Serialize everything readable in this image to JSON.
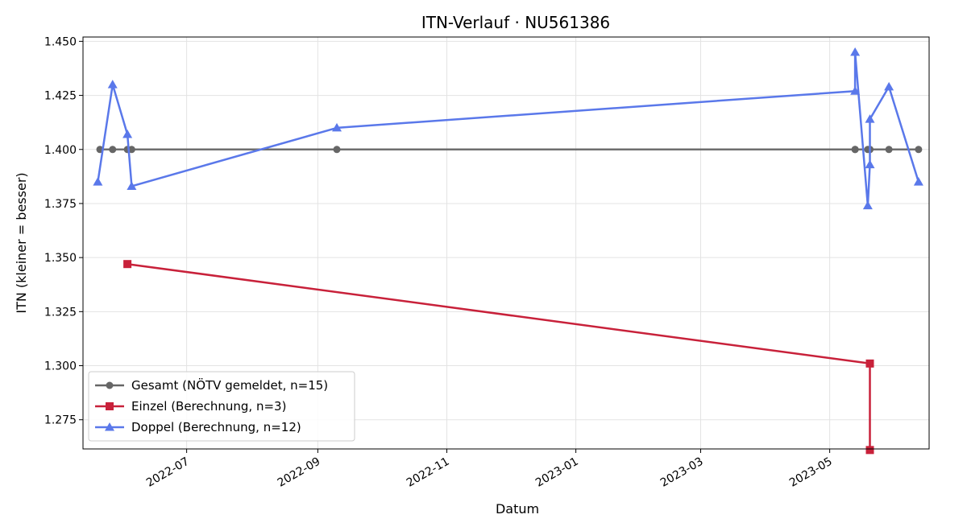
{
  "chart_data": {
    "type": "line",
    "title": "ITN-Verlauf · NU561386",
    "xlabel": "Datum",
    "ylabel": "ITN  (kleiner = besser)",
    "x_type": "date",
    "xlim": [
      "2022-05-13",
      "2023-06-17"
    ],
    "ylim": [
      1.2615,
      1.452
    ],
    "x_ticks": [
      "2022-07-01",
      "2022-09-01",
      "2022-11-01",
      "2023-01-01",
      "2023-03-01",
      "2023-05-01"
    ],
    "x_tick_labels": [
      "2022-07",
      "2022-09",
      "2022-11",
      "2023-01",
      "2023-03",
      "2023-05"
    ],
    "y_ticks": [
      1.275,
      1.3,
      1.325,
      1.35,
      1.375,
      1.4,
      1.425,
      1.45
    ],
    "y_tick_labels": [
      "1.275",
      "1.300",
      "1.325",
      "1.350",
      "1.375",
      "1.400",
      "1.425",
      "1.450"
    ],
    "grid": true,
    "legend_position": "lower-left",
    "series": [
      {
        "name": "Gesamt (NÖTV gemeldet, n=15)",
        "color": "#666666",
        "marker": "circle",
        "points": [
          {
            "x": "2022-05-21",
            "y": 1.4
          },
          {
            "x": "2022-05-27",
            "y": 1.4
          },
          {
            "x": "2022-06-03",
            "y": 1.4
          },
          {
            "x": "2022-06-05",
            "y": 1.4
          },
          {
            "x": "2022-09-10",
            "y": 1.4
          },
          {
            "x": "2023-05-13",
            "y": 1.4
          },
          {
            "x": "2023-05-13",
            "y": 1.4
          },
          {
            "x": "2023-05-19",
            "y": 1.4
          },
          {
            "x": "2023-05-20",
            "y": 1.4
          },
          {
            "x": "2023-05-20",
            "y": 1.4
          },
          {
            "x": "2023-05-29",
            "y": 1.4
          },
          {
            "x": "2023-06-12",
            "y": 1.4
          }
        ]
      },
      {
        "name": "Einzel (Berechnung, n=3)",
        "color": "#c8213a",
        "marker": "square",
        "points": [
          {
            "x": "2022-06-03",
            "y": 1.347
          },
          {
            "x": "2023-05-20",
            "y": 1.301
          },
          {
            "x": "2023-05-20",
            "y": 1.261
          }
        ]
      },
      {
        "name": "Doppel (Berechnung, n=12)",
        "color": "#5a78ea",
        "marker": "triangle",
        "points": [
          {
            "x": "2022-05-20",
            "y": 1.385
          },
          {
            "x": "2022-05-27",
            "y": 1.43
          },
          {
            "x": "2022-06-03",
            "y": 1.407
          },
          {
            "x": "2022-06-05",
            "y": 1.383
          },
          {
            "x": "2022-09-10",
            "y": 1.41
          },
          {
            "x": "2023-05-13",
            "y": 1.427
          },
          {
            "x": "2023-05-13",
            "y": 1.445
          },
          {
            "x": "2023-05-19",
            "y": 1.374
          },
          {
            "x": "2023-05-20",
            "y": 1.393
          },
          {
            "x": "2023-05-20",
            "y": 1.414
          },
          {
            "x": "2023-05-29",
            "y": 1.429
          },
          {
            "x": "2023-06-12",
            "y": 1.385
          }
        ]
      }
    ]
  }
}
